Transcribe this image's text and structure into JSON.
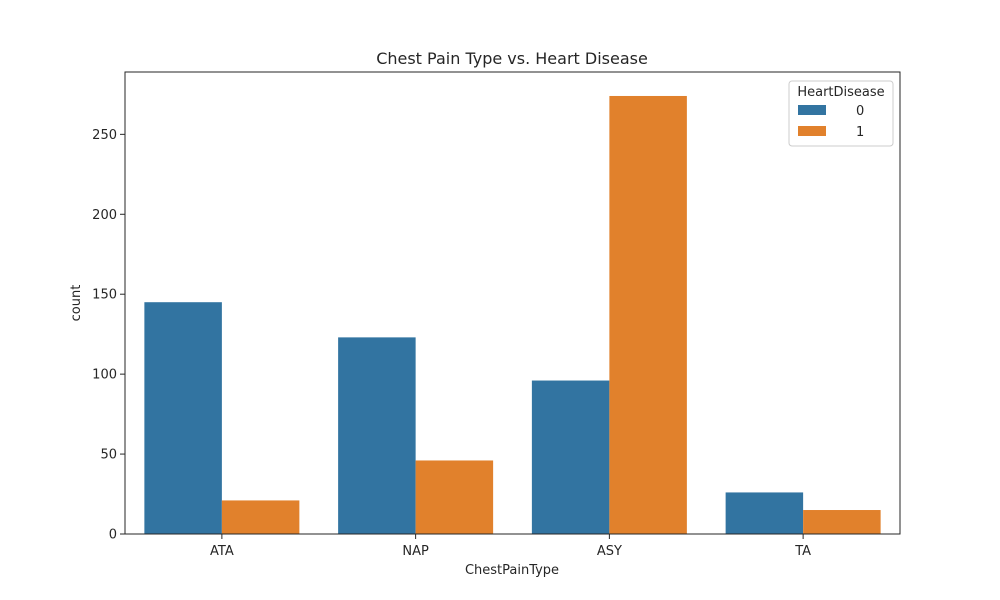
{
  "chart_data": {
    "type": "bar",
    "title": "Chest Pain Type vs. Heart Disease",
    "xlabel": "ChestPainType",
    "ylabel": "count",
    "categories": [
      "ATA",
      "NAP",
      "ASY",
      "TA"
    ],
    "series": [
      {
        "name": "0",
        "values": [
          145,
          123,
          96,
          26
        ],
        "color": "#3274a1"
      },
      {
        "name": "1",
        "values": [
          21,
          46,
          274,
          15
        ],
        "color": "#e1812c"
      }
    ],
    "ylim": [
      0,
      289
    ],
    "yticks": [
      0,
      50,
      100,
      150,
      200,
      250
    ],
    "legend": {
      "title": "HeartDisease",
      "placement": "top-right"
    },
    "grid": false
  }
}
